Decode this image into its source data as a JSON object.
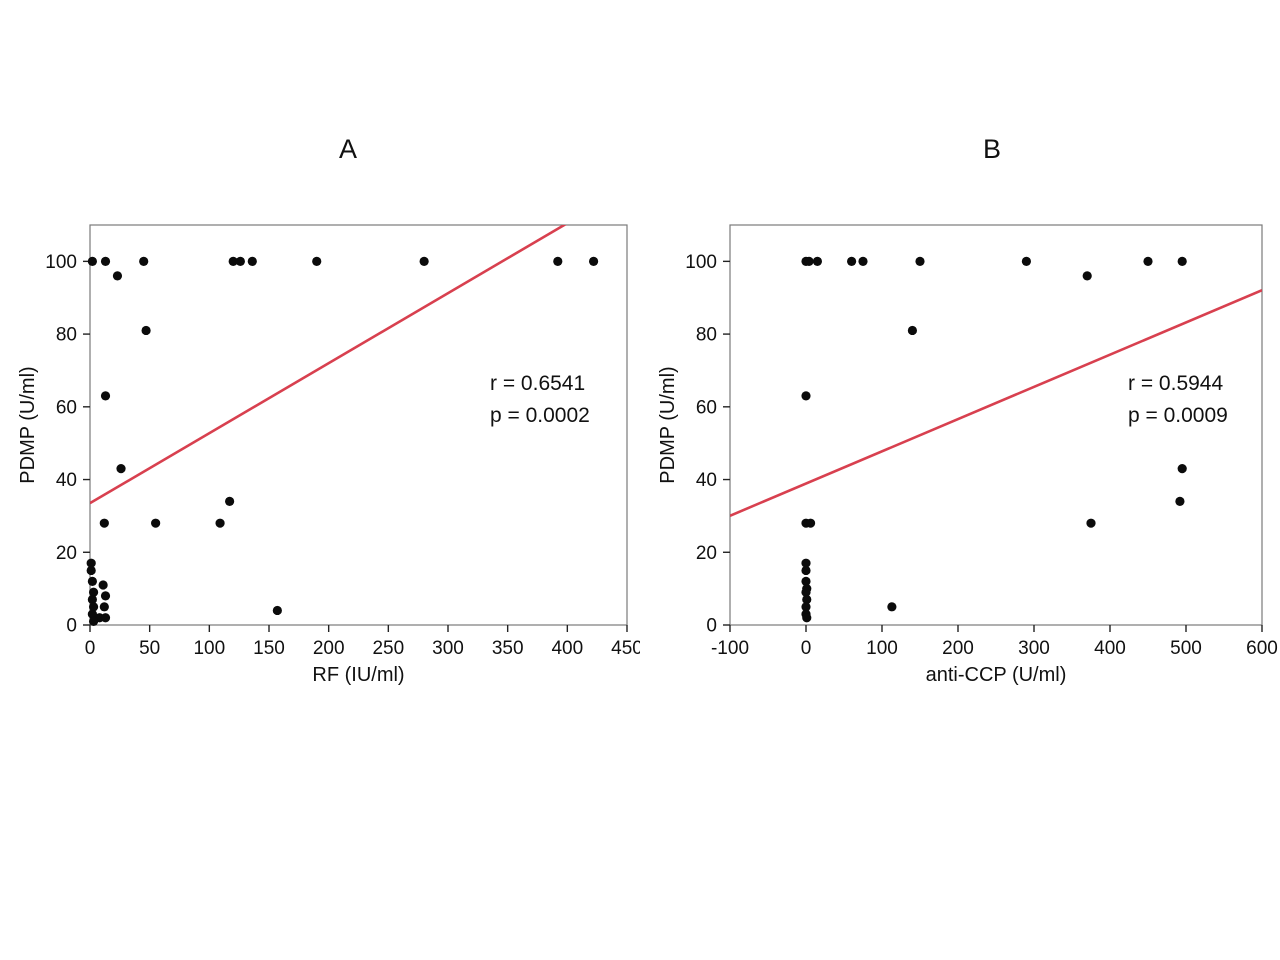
{
  "page": {
    "background": "#ffffff"
  },
  "colors": {
    "point": "#0b0b0b",
    "trendline": "#d8404f",
    "axis": "#222222",
    "frame": "#7a7a7a",
    "tick_text": "#111111"
  },
  "chart_data": [
    {
      "type": "scatter",
      "panel_label": "A",
      "xlabel": "RF (IU/ml)",
      "ylabel": "PDMP (U/ml)",
      "xlim": [
        0,
        450
      ],
      "xticks": [
        0,
        50,
        100,
        150,
        200,
        250,
        300,
        350,
        400,
        450
      ],
      "ylim": [
        0,
        110
      ],
      "yticks": [
        0,
        20,
        40,
        60,
        80,
        100
      ],
      "annotation": [
        "r = 0.6541",
        "p = 0.0002"
      ],
      "stats": {
        "r": 0.6541,
        "p": 0.0002
      },
      "trendline": {
        "slope": 0.1925,
        "intercept": 33.5
      },
      "grid": false,
      "points": [
        [
          2,
          100
        ],
        [
          13,
          100
        ],
        [
          45,
          100
        ],
        [
          120,
          100
        ],
        [
          126,
          100
        ],
        [
          136,
          100
        ],
        [
          190,
          100
        ],
        [
          280,
          100
        ],
        [
          392,
          100
        ],
        [
          422,
          100
        ],
        [
          23,
          96
        ],
        [
          47,
          81
        ],
        [
          13,
          63
        ],
        [
          26,
          43
        ],
        [
          117,
          34
        ],
        [
          12,
          28
        ],
        [
          55,
          28
        ],
        [
          109,
          28
        ],
        [
          157,
          4
        ],
        [
          1,
          17
        ],
        [
          1,
          15
        ],
        [
          2,
          12
        ],
        [
          11,
          11
        ],
        [
          3,
          9
        ],
        [
          13,
          8
        ],
        [
          2,
          7
        ],
        [
          3,
          5
        ],
        [
          12,
          5
        ],
        [
          2,
          3
        ],
        [
          8,
          2
        ],
        [
          13,
          2
        ],
        [
          3,
          1
        ]
      ]
    },
    {
      "type": "scatter",
      "panel_label": "B",
      "xlabel": "anti-CCP (U/ml)",
      "ylabel": "PDMP (U/ml)",
      "xlim": [
        -100,
        600
      ],
      "xticks": [
        -100,
        0,
        100,
        200,
        300,
        400,
        500,
        600
      ],
      "ylim": [
        0,
        110
      ],
      "yticks": [
        0,
        20,
        40,
        60,
        80,
        100
      ],
      "annotation": [
        "r = 0.5944",
        "p = 0.0009"
      ],
      "stats": {
        "r": 0.5944,
        "p": 0.0009
      },
      "trendline": {
        "slope": 0.0886,
        "intercept": 38.9
      },
      "grid": false,
      "points": [
        [
          0,
          100
        ],
        [
          4,
          100
        ],
        [
          15,
          100
        ],
        [
          60,
          100
        ],
        [
          75,
          100
        ],
        [
          150,
          100
        ],
        [
          290,
          100
        ],
        [
          450,
          100
        ],
        [
          495,
          100
        ],
        [
          370,
          96
        ],
        [
          140,
          81
        ],
        [
          0,
          63
        ],
        [
          495,
          43
        ],
        [
          492,
          34
        ],
        [
          0,
          28
        ],
        [
          6,
          28
        ],
        [
          375,
          28
        ],
        [
          113,
          5
        ],
        [
          0,
          17
        ],
        [
          0,
          15
        ],
        [
          0,
          12
        ],
        [
          1,
          10
        ],
        [
          0,
          9
        ],
        [
          1,
          7
        ],
        [
          0,
          5
        ],
        [
          0,
          3
        ],
        [
          1,
          2
        ]
      ]
    }
  ]
}
